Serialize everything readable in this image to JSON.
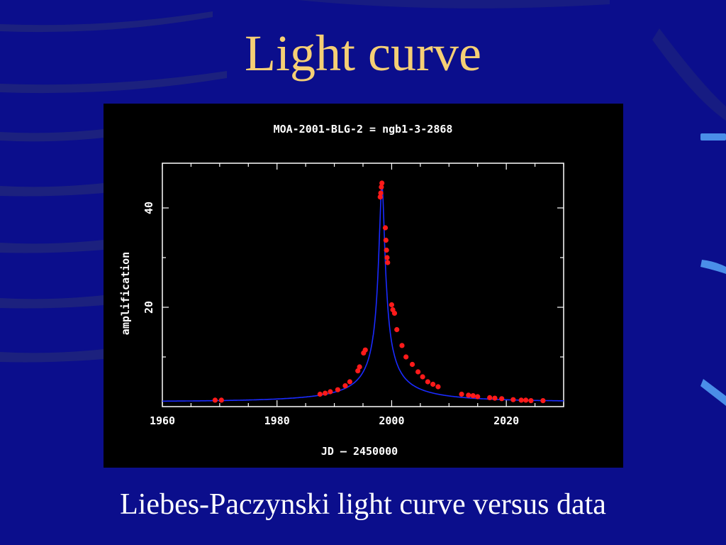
{
  "slide": {
    "title": "Light curve",
    "caption": "Liebes-Paczynski light curve versus data"
  },
  "colors": {
    "background": "#0b0e8c",
    "title": "#f5cf75",
    "panel": "#000000",
    "axes": "#ffffff",
    "model_curve": "#1a2bff",
    "data_points": "#ff1a1a"
  },
  "chart_data": {
    "type": "scatter",
    "title": "MOA-2001-BLG-2 = ngb1-3-2868",
    "xlabel": "JD – 2450000",
    "ylabel": "amplification",
    "xlim": [
      1960,
      2030
    ],
    "ylim": [
      0,
      49
    ],
    "x_ticks": [
      1960,
      1980,
      2000,
      2020
    ],
    "y_ticks": [
      20,
      40
    ],
    "grid": false,
    "model": {
      "kind": "Paczynski",
      "t0": 1998.3,
      "tE": 23,
      "u0": 0.0225
    },
    "series": [
      {
        "x": [
          1969.2,
          1970.3,
          1987.5,
          1988.4,
          1989.3,
          1990.6,
          1991.9,
          1992.7,
          1994.1,
          1994.4,
          1995.1,
          1995.4,
          1998.0,
          1998.1,
          1998.2,
          1998.3,
          1998.9,
          1999.0,
          1999.1,
          1999.2,
          1999.3,
          2000.0,
          2000.2,
          2000.5,
          2000.9,
          2001.8,
          2002.5,
          2003.6,
          2004.6,
          2005.4,
          2006.3,
          2007.2,
          2008.1,
          2012.2,
          2013.4,
          2014.2,
          2015.0,
          2017.1,
          2018.0,
          2019.2,
          2021.2,
          2022.6,
          2023.4,
          2024.3,
          2026.4
        ],
        "y": [
          1.3,
          1.3,
          2.5,
          2.7,
          3.0,
          3.4,
          4.2,
          5.0,
          7.2,
          8.0,
          10.8,
          11.4,
          42.2,
          43.0,
          44.2,
          45.0,
          36.0,
          33.5,
          31.5,
          30.0,
          29.0,
          20.5,
          19.5,
          18.8,
          15.5,
          12.3,
          10.0,
          8.5,
          7.0,
          6.0,
          5.0,
          4.5,
          4.0,
          2.5,
          2.3,
          2.2,
          2.0,
          1.8,
          1.7,
          1.6,
          1.4,
          1.3,
          1.3,
          1.2,
          1.2
        ]
      }
    ]
  }
}
